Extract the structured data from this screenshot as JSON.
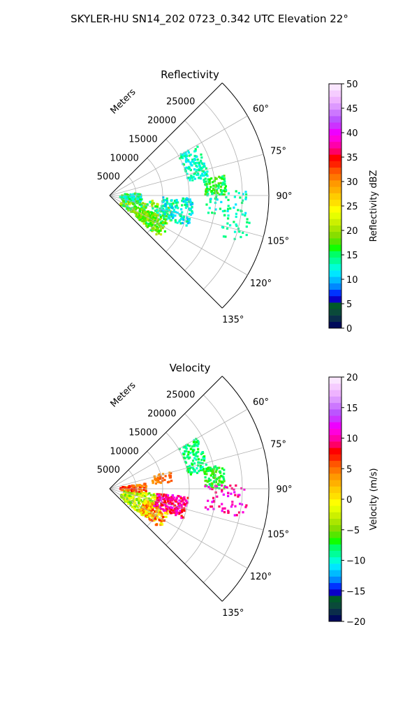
{
  "figure": {
    "suptitle": "SKYLER-HU  SN14_202  0723_0.342 UTC Elevation 22°"
  },
  "chart_data": [
    {
      "type": "polar-sector",
      "title": "Reflectivity",
      "radial_label": "Meters",
      "radial_ticks": [
        "5000",
        "10000",
        "15000",
        "20000",
        "25000"
      ],
      "radial_max": 30000,
      "angle_range_deg": [
        45,
        135
      ],
      "angle_ticks": [
        "60°",
        "75°",
        "90°",
        "105°",
        "120°",
        "135°"
      ],
      "grid": true,
      "colorbar": {
        "label": "Reflectivity dBZ",
        "min": 0,
        "max": 50,
        "ticks": [
          "0",
          "5",
          "10",
          "15",
          "20",
          "25",
          "30",
          "35",
          "40",
          "45",
          "50"
        ],
        "colors": [
          "#000a5a",
          "#0a2d4a",
          "#0a4a3a",
          "#005a2a",
          "#0a00c8",
          "#0033ff",
          "#0088ff",
          "#00bbff",
          "#00e6ff",
          "#00ffd5",
          "#00ff99",
          "#00ff66",
          "#11ff00",
          "#55e600",
          "#88dd00",
          "#aae600",
          "#ccf000",
          "#e6ff00",
          "#ffff00",
          "#ffe000",
          "#ffcc00",
          "#ffb000",
          "#ff9900",
          "#ff7700",
          "#ff5500",
          "#ff2200",
          "#ff0000",
          "#ff0066",
          "#ff00aa",
          "#ff00dd",
          "#ee00ff",
          "#cc33ff",
          "#bb55ff",
          "#cc77ff",
          "#dd99ff",
          "#eeb3ff",
          "#f5ccff",
          "#fae6ff"
        ]
      }
    },
    {
      "type": "polar-sector",
      "title": "Velocity",
      "radial_label": "Meters",
      "radial_ticks": [
        "5000",
        "10000",
        "15000",
        "20000",
        "25000"
      ],
      "radial_max": 30000,
      "angle_range_deg": [
        45,
        135
      ],
      "angle_ticks": [
        "60°",
        "75°",
        "90°",
        "105°",
        "120°",
        "135°"
      ],
      "grid": true,
      "colorbar": {
        "label": "Velocity (m/s)",
        "min": -20,
        "max": 20,
        "ticks": [
          "−20",
          "−15",
          "−10",
          "−5",
          "0",
          "5",
          "10",
          "15",
          "20"
        ],
        "colors": [
          "#000a5a",
          "#0a2d4a",
          "#0a4a3a",
          "#005a2a",
          "#0a00c8",
          "#0033ff",
          "#0088ff",
          "#00bbff",
          "#00e6ff",
          "#00ffd5",
          "#00ff99",
          "#00ff66",
          "#11ff00",
          "#55e600",
          "#88dd00",
          "#aae600",
          "#ccf000",
          "#e6ff00",
          "#ffff00",
          "#ffe000",
          "#ffcc00",
          "#ffb000",
          "#ff9900",
          "#ff7700",
          "#ff5500",
          "#ff2200",
          "#ff0000",
          "#ff0066",
          "#ff00aa",
          "#ff00dd",
          "#ee00ff",
          "#cc33ff",
          "#bb55ff",
          "#cc77ff",
          "#dd99ff",
          "#eeb3ff",
          "#f5ccff",
          "#fae6ff"
        ]
      }
    }
  ]
}
